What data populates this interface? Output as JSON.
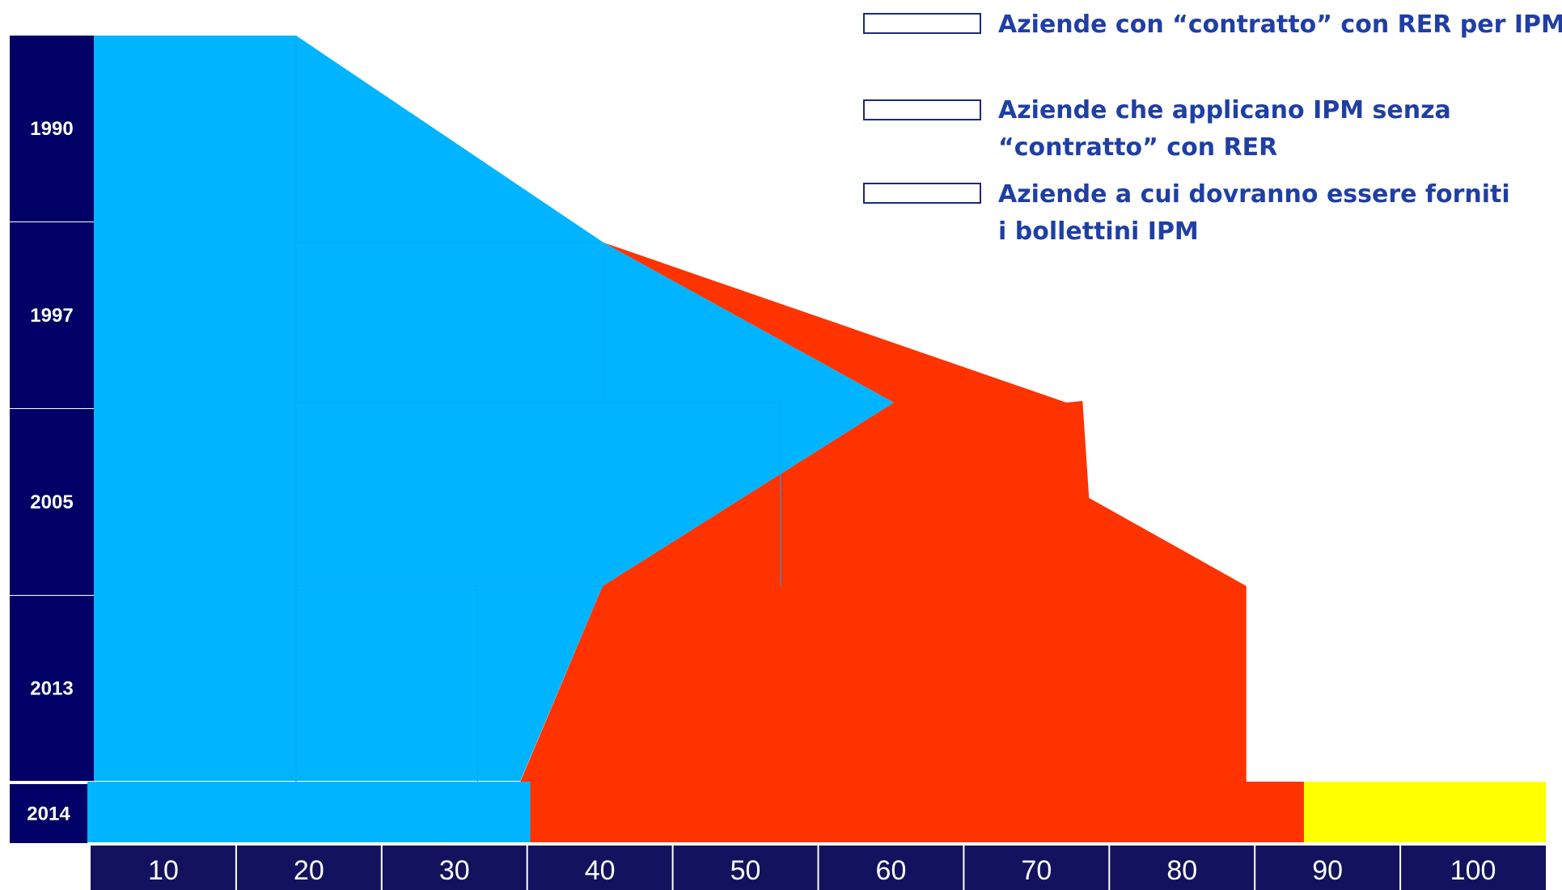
{
  "chart_data": {
    "type": "area",
    "title": "",
    "xlabel": "",
    "ylabel": "",
    "x_ticks": [
      "10",
      "20",
      "30",
      "40",
      "50",
      "60",
      "70",
      "80",
      "90",
      "100"
    ],
    "xlim": [
      0,
      100
    ],
    "y_categories": [
      "1990",
      "1997",
      "2005",
      "2013",
      "2014"
    ],
    "legend": [
      {
        "label": "Aziende con “contratto” con RER per IPM",
        "color": "#00b4ff"
      },
      {
        "label": "Aziende che applicano IPM senza “contratto” con RER",
        "color": "#ff3300"
      },
      {
        "label": "Aziende a cui dovranno essere forniti i bollettini IPM",
        "color": "#ffff00"
      }
    ],
    "series": [
      {
        "name": "Aziende con “contratto” con RER per IPM",
        "color": "#00b4ff",
        "values": [
          {
            "year": "1990",
            "pct": 20
          },
          {
            "year": "1990/1997",
            "pct": 41
          },
          {
            "year": "1997/2005",
            "pct": 61
          },
          {
            "year": "2005/2013",
            "pct": 41
          },
          {
            "year": "2013/2014",
            "pct": 35
          },
          {
            "year": "2014",
            "pct": 30
          }
        ]
      },
      {
        "name": "Aziende che applicano IPM senza “contratto” con RER",
        "color": "#ff3300",
        "values": [
          {
            "year": "1990/1997",
            "pct": 41
          },
          {
            "year": "1997/2005",
            "pct": 69.5
          },
          {
            "year": "2005",
            "pct": 74
          },
          {
            "year": "2005/2013",
            "pct": 85
          },
          {
            "year": "2013/2014",
            "pct": 85
          },
          {
            "year": "2014",
            "pct": 84
          }
        ]
      },
      {
        "name": "Aziende a cui dovranno essere forniti i bollettini IPM",
        "color": "#ffff00",
        "values": [
          {
            "year": "2014",
            "pct": 100
          }
        ]
      }
    ],
    "axis_color": "#000066",
    "band_color": "#12125e"
  }
}
